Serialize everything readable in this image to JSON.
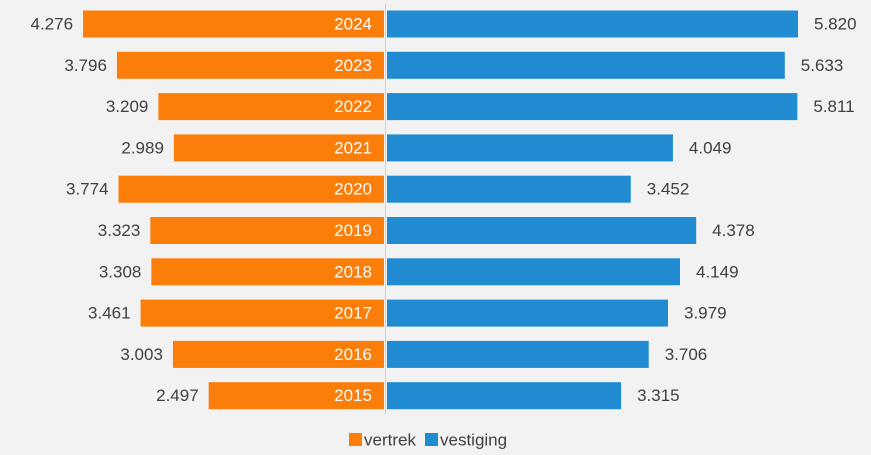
{
  "chart_data": {
    "type": "butterfly",
    "categories": [
      "2024",
      "2023",
      "2022",
      "2021",
      "2020",
      "2019",
      "2018",
      "2017",
      "2016",
      "2015"
    ],
    "series": [
      {
        "name": "vertrek",
        "color": "#fb7d0a",
        "values": [
          4276,
          3796,
          3209,
          2989,
          3774,
          3323,
          3308,
          3461,
          3003,
          2497
        ],
        "value_labels": [
          "4.276",
          "3.796",
          "3.209",
          "2.989",
          "3.774",
          "3.323",
          "3.308",
          "3.461",
          "3.003",
          "2.497"
        ]
      },
      {
        "name": "vestiging",
        "color": "#218bd2",
        "values": [
          5820,
          5633,
          5811,
          4049,
          3452,
          4378,
          4149,
          3979,
          3706,
          3315
        ],
        "value_labels": [
          "5.820",
          "5.633",
          "5.811",
          "4.049",
          "3.452",
          "4.378",
          "4.149",
          "3.979",
          "3.706",
          "3.315"
        ]
      }
    ]
  }
}
